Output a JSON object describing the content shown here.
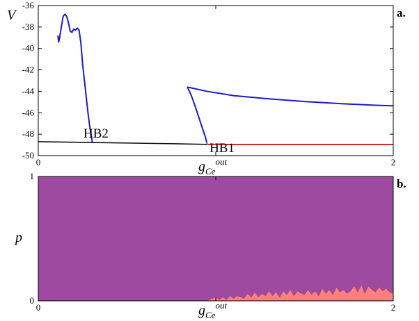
{
  "chart_data": [
    {
      "type": "line",
      "panel_label": "a.",
      "ylabel": "V",
      "xlabel": {
        "main": "g",
        "sub": "Ce",
        "sup": "out"
      },
      "xlim": [
        0,
        2
      ],
      "ylim": [
        -50,
        -36
      ],
      "xticks": [
        0,
        1,
        2
      ],
      "xtick_labels": [
        "0",
        "",
        "2"
      ],
      "yticks": [
        -50,
        -48,
        -46,
        -44,
        -42,
        -40,
        -38,
        -36
      ],
      "ytick_labels": [
        "-50",
        "-48",
        "-46",
        "-44",
        "-42",
        "-40",
        "-38",
        "-36"
      ],
      "grid": false,
      "annotations": [
        {
          "text": "HB2",
          "x": 0.255,
          "y": -48.3
        },
        {
          "text": "HB1",
          "x": 0.965,
          "y": -49.1
        }
      ],
      "series": [
        {
          "color": "#111111",
          "x": [
            0,
            0.2,
            0.4,
            0.6,
            0.8,
            0.95
          ],
          "y": [
            -48.7,
            -48.75,
            -48.8,
            -48.85,
            -48.9,
            -48.95
          ]
        },
        {
          "color": "#cc0000",
          "x": [
            0.95,
            1.2,
            1.5,
            1.8,
            2.0
          ],
          "y": [
            -48.95,
            -48.95,
            -48.95,
            -48.95,
            -48.95
          ]
        },
        {
          "color": "#1a1acc",
          "x": [
            0.11,
            0.115,
            0.12,
            0.13,
            0.14,
            0.15,
            0.16,
            0.17,
            0.18,
            0.19,
            0.2,
            0.21,
            0.22,
            0.23,
            0.24,
            0.245,
            0.25,
            0.26,
            0.27,
            0.28,
            0.29,
            0.3,
            0.305
          ],
          "y": [
            -38.8,
            -39.4,
            -39.0,
            -38.0,
            -37.0,
            -36.8,
            -37.0,
            -37.6,
            -38.4,
            -38.5,
            -38.2,
            -38.3,
            -38.1,
            -38.3,
            -39.5,
            -40.5,
            -41.5,
            -43.0,
            -44.5,
            -46.0,
            -47.3,
            -48.3,
            -48.8
          ]
        },
        {
          "color": "#1a1acc",
          "x": [
            0.84,
            0.95,
            1.1,
            1.3,
            1.5,
            1.7,
            1.9,
            2.0
          ],
          "y": [
            -43.6,
            -44.0,
            -44.4,
            -44.7,
            -44.95,
            -45.15,
            -45.3,
            -45.35
          ]
        },
        {
          "color": "#1a1acc",
          "x": [
            0.84,
            0.86,
            0.88,
            0.9,
            0.92,
            0.94,
            0.95
          ],
          "y": [
            -43.6,
            -44.3,
            -45.2,
            -46.2,
            -47.2,
            -48.2,
            -48.8
          ]
        },
        {
          "color": "#2ca02c",
          "x": [
            0.945,
            0.955
          ],
          "y": [
            -48.75,
            -48.95
          ]
        }
      ]
    },
    {
      "type": "area",
      "panel_label": "b.",
      "ylabel": "p",
      "xlabel": {
        "main": "g",
        "sub": "Ce",
        "sup": "out"
      },
      "xlim": [
        0,
        2
      ],
      "ylim": [
        0,
        1
      ],
      "xticks": [
        0,
        1,
        2
      ],
      "xtick_labels": [
        "0",
        "",
        "2"
      ],
      "yticks": [
        0,
        1
      ],
      "ytick_labels": [
        "0",
        "1"
      ],
      "grid": false,
      "series": [
        {
          "color": "#ff7f7f",
          "x": [
            0,
            0.95,
            0.98,
            1.0,
            1.02,
            1.04,
            1.06,
            1.08,
            1.1,
            1.12,
            1.14,
            1.16,
            1.18,
            1.2,
            1.22,
            1.24,
            1.26,
            1.28,
            1.3,
            1.32,
            1.34,
            1.36,
            1.38,
            1.4,
            1.42,
            1.44,
            1.46,
            1.48,
            1.5,
            1.52,
            1.54,
            1.56,
            1.58,
            1.6,
            1.62,
            1.64,
            1.66,
            1.68,
            1.7,
            1.72,
            1.74,
            1.76,
            1.78,
            1.8,
            1.82,
            1.84,
            1.86,
            1.88,
            1.9,
            1.92,
            1.94,
            1.96,
            1.98,
            2.0
          ],
          "y": [
            0,
            0,
            0.02,
            0.03,
            0.01,
            0.03,
            0.01,
            0.04,
            0.02,
            0.04,
            0.03,
            0.02,
            0.06,
            0.03,
            0.07,
            0.03,
            0.06,
            0.04,
            0.08,
            0.04,
            0.07,
            0.03,
            0.08,
            0.05,
            0.09,
            0.04,
            0.08,
            0.06,
            0.05,
            0.09,
            0.05,
            0.08,
            0.04,
            0.1,
            0.06,
            0.09,
            0.05,
            0.11,
            0.07,
            0.09,
            0.06,
            0.08,
            0.12,
            0.07,
            0.13,
            0.06,
            0.12,
            0.09,
            0.07,
            0.11,
            0.08,
            0.1,
            0.07,
            0.06
          ]
        },
        {
          "color": "#9e4aa0",
          "x": [
            0,
            2
          ],
          "y": [
            1,
            1
          ]
        }
      ]
    }
  ]
}
